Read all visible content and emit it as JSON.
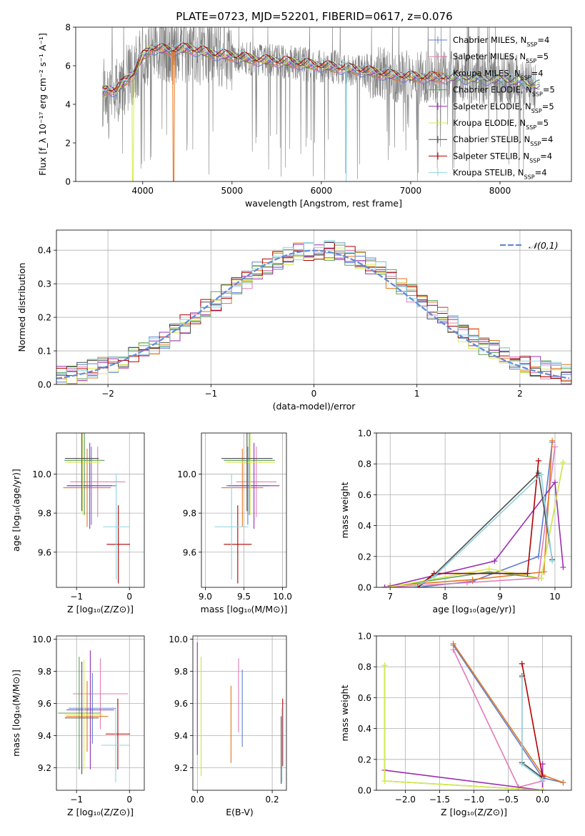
{
  "figure": {
    "title": "PLATE=0723, MJD=52201, FIBERID=0617, z=0.076"
  },
  "colors": {
    "Chabrier MILES": "#5e7fd1",
    "Salpeter MILES": "#e27bb5",
    "Kroupa MILES": "#e6761f",
    "Chabrier ELODIE": "#5f9f5a",
    "Salpeter ELODIE": "#9a2fb0",
    "Kroupa ELODIE": "#d8ec4e",
    "Chabrier STELIB": "#4f4f4f",
    "Salpeter STELIB": "#b00000",
    "Kroupa STELIB": "#8fd3e0",
    "data": "#808080",
    "normal": "#5f8ad8"
  },
  "chart_data": [
    {
      "id": "spectrum",
      "type": "line",
      "xlabel": "wavelength [Angstrom, rest frame]",
      "ylabel": "Flux [f_λ 10⁻¹⁷ erg cm⁻² s⁻¹ A⁻¹]",
      "xlim": [
        3250,
        8800
      ],
      "ylim": [
        0,
        8
      ],
      "xticks": [
        4000,
        5000,
        6000,
        7000,
        8000
      ],
      "yticks": [
        0,
        2,
        4,
        6,
        8
      ],
      "legend_position": "right",
      "legend": [
        "Chabrier MILES, N_SSP=4",
        "Salpeter MILES, N_SSP=5",
        "Kroupa MILES, N_SSP=4",
        "Chabrier ELODIE, N_SSP=5",
        "Salpeter ELODIE, N_SSP=5",
        "Kroupa ELODIE, N_SSP=5",
        "Chabrier STELIB, N_SSP=4",
        "Salpeter STELIB, N_SSP=4",
        "Kroupa STELIB, N_SSP=4"
      ],
      "data_range": [
        3550,
        8400
      ],
      "model_continuum": [
        [
          3550,
          4.6
        ],
        [
          3600,
          4.8
        ],
        [
          3700,
          4.7
        ],
        [
          3800,
          5.2
        ],
        [
          3900,
          5.6
        ],
        [
          4000,
          6.5
        ],
        [
          4100,
          6.9
        ],
        [
          4300,
          6.8
        ],
        [
          4500,
          6.9
        ],
        [
          4800,
          6.6
        ],
        [
          5000,
          6.5
        ],
        [
          5300,
          6.3
        ],
        [
          5600,
          6.2
        ],
        [
          6000,
          6.0
        ],
        [
          6400,
          5.8
        ],
        [
          6800,
          5.5
        ],
        [
          7100,
          5.4
        ],
        [
          7500,
          5.4
        ],
        [
          7900,
          5.3
        ],
        [
          8200,
          5.2
        ],
        [
          8400,
          5.0
        ]
      ]
    },
    {
      "id": "residual-hist",
      "type": "histogram",
      "xlabel": "(data-model)/error",
      "ylabel": "Normed distribution",
      "xlim": [
        -2.5,
        2.5
      ],
      "ylim": [
        0,
        0.46
      ],
      "xticks": [
        -2,
        -1,
        0,
        1,
        2
      ],
      "yticks": [
        0.0,
        0.1,
        0.2,
        0.3,
        0.4
      ],
      "legend": [
        "𝒩(0,1)"
      ],
      "legend_position": "top-right",
      "bin_width": 0.1
    },
    {
      "id": "age-vs-Z",
      "type": "errorbar",
      "xlabel": "Z [log₁₀(Z/Z⊙)]",
      "ylabel": "age  [log₁₀(age/yr)]",
      "xlim": [
        -1.38,
        0.28
      ],
      "ylim": [
        9.42,
        10.21
      ],
      "xticks": [
        -1,
        0
      ],
      "yticks": [
        9.6,
        9.8,
        10.0
      ],
      "points": [
        {
          "model": "Chabrier MILES",
          "x": -0.72,
          "xerr": 0.47,
          "y": 9.94,
          "yerr": 0.2
        },
        {
          "model": "Salpeter MILES",
          "x": -0.6,
          "xerr": 0.52,
          "y": 9.96,
          "yerr": 0.18
        },
        {
          "model": "Kroupa MILES",
          "x": -0.8,
          "xerr": 0.45,
          "y": 9.93,
          "yerr": 0.2
        },
        {
          "model": "Chabrier ELODIE",
          "x": -0.85,
          "xerr": 0.38,
          "y": 10.07,
          "yerr": 0.28
        },
        {
          "model": "Salpeter ELODIE",
          "x": -0.75,
          "xerr": 0.42,
          "y": 9.94,
          "yerr": 0.22
        },
        {
          "model": "Kroupa ELODIE",
          "x": -0.88,
          "xerr": 0.33,
          "y": 10.06,
          "yerr": 0.27
        },
        {
          "model": "Chabrier STELIB",
          "x": -0.9,
          "xerr": 0.32,
          "y": 10.08,
          "yerr": 0.27
        },
        {
          "model": "Salpeter STELIB",
          "x": -0.21,
          "xerr": 0.22,
          "y": 9.64,
          "yerr": 0.2
        },
        {
          "model": "Kroupa STELIB",
          "x": -0.25,
          "xerr": 0.25,
          "y": 9.73,
          "yerr": 0.27
        }
      ]
    },
    {
      "id": "age-vs-mass",
      "type": "errorbar",
      "xlabel": "mass [log₁₀(M/M⊙)]",
      "ylabel": "",
      "xlim": [
        8.95,
        10.05
      ],
      "ylim": [
        9.42,
        10.21
      ],
      "xticks": [
        9.0,
        9.5,
        10.0
      ],
      "yticks": [
        9.6,
        9.8,
        10.0
      ],
      "points": [
        {
          "model": "Chabrier MILES",
          "x": 9.55,
          "xerr": 0.28,
          "y": 9.94,
          "yerr": 0.2
        },
        {
          "model": "Salpeter MILES",
          "x": 9.66,
          "xerr": 0.26,
          "y": 9.96,
          "yerr": 0.18
        },
        {
          "model": "Kroupa MILES",
          "x": 9.48,
          "xerr": 0.27,
          "y": 9.93,
          "yerr": 0.2
        },
        {
          "model": "Chabrier ELODIE",
          "x": 9.57,
          "xerr": 0.33,
          "y": 10.07,
          "yerr": 0.28
        },
        {
          "model": "Salpeter ELODIE",
          "x": 9.63,
          "xerr": 0.33,
          "y": 9.94,
          "yerr": 0.22
        },
        {
          "model": "Kroupa ELODIE",
          "x": 9.58,
          "xerr": 0.32,
          "y": 10.06,
          "yerr": 0.27
        },
        {
          "model": "Chabrier STELIB",
          "x": 9.54,
          "xerr": 0.33,
          "y": 10.08,
          "yerr": 0.27
        },
        {
          "model": "Salpeter STELIB",
          "x": 9.42,
          "xerr": 0.18,
          "y": 9.64,
          "yerr": 0.2
        },
        {
          "model": "Kroupa STELIB",
          "x": 9.34,
          "xerr": 0.22,
          "y": 9.73,
          "yerr": 0.27
        }
      ]
    },
    {
      "id": "weight-vs-age",
      "type": "line",
      "xlabel": "age  [log₁₀(age/yr)]",
      "ylabel": "mass weight",
      "xlim": [
        6.75,
        10.3
      ],
      "ylim": [
        0,
        1
      ],
      "xticks": [
        7,
        8,
        9,
        10
      ],
      "yticks": [
        0.0,
        0.2,
        0.4,
        0.6,
        0.8,
        1.0
      ],
      "series": [
        {
          "model": "Chabrier MILES",
          "x": [
            7.5,
            8.5,
            9.7,
            9.95
          ],
          "y": [
            0.0,
            0.04,
            0.2,
            0.94
          ]
        },
        {
          "model": "Salpeter MILES",
          "x": [
            6.9,
            8.4,
            9.7,
            10.0
          ],
          "y": [
            0.0,
            0.03,
            0.06,
            0.91
          ]
        },
        {
          "model": "Kroupa MILES",
          "x": [
            7.0,
            8.5,
            9.8,
            9.95
          ],
          "y": [
            0.01,
            0.05,
            0.1,
            0.95
          ]
        },
        {
          "model": "Chabrier ELODIE",
          "x": [
            6.9,
            8.8,
            9.75,
            10.15
          ],
          "y": [
            0.0,
            0.1,
            0.06,
            0.81
          ]
        },
        {
          "model": "Salpeter ELODIE",
          "x": [
            6.9,
            8.9,
            10.0,
            10.15
          ],
          "y": [
            0.0,
            0.17,
            0.68,
            0.13
          ]
        },
        {
          "model": "Kroupa ELODIE",
          "x": [
            6.95,
            8.8,
            9.75,
            10.15
          ],
          "y": [
            0.0,
            0.12,
            0.06,
            0.81
          ]
        },
        {
          "model": "Chabrier STELIB",
          "x": [
            7.5,
            7.8,
            9.7,
            9.95
          ],
          "y": [
            0.0,
            0.08,
            0.74,
            0.18
          ]
        },
        {
          "model": "Salpeter STELIB",
          "x": [
            7.5,
            7.8,
            9.5,
            9.7
          ],
          "y": [
            0.0,
            0.09,
            0.09,
            0.82
          ]
        },
        {
          "model": "Kroupa STELIB",
          "x": [
            7.45,
            7.8,
            9.75,
            9.95
          ],
          "y": [
            0.0,
            0.07,
            0.73,
            0.17
          ]
        }
      ]
    },
    {
      "id": "mass-vs-Z",
      "type": "errorbar",
      "xlabel": "Z [log₁₀(Z/Z⊙)]",
      "ylabel": "mass [log₁₀(M/M⊙)]",
      "xlim": [
        -1.38,
        0.28
      ],
      "ylim": [
        9.06,
        10.02
      ],
      "xticks": [
        -1,
        0
      ],
      "yticks": [
        9.2,
        9.4,
        9.6,
        9.8,
        10.0
      ],
      "points": [
        {
          "model": "Chabrier MILES",
          "x": -0.7,
          "xerr": 0.45,
          "y": 9.57,
          "yerr": 0.22
        },
        {
          "model": "Salpeter MILES",
          "x": -0.55,
          "xerr": 0.52,
          "y": 9.66,
          "yerr": 0.22
        },
        {
          "model": "Kroupa MILES",
          "x": -0.8,
          "xerr": 0.4,
          "y": 9.52,
          "yerr": 0.22
        },
        {
          "model": "Chabrier ELODIE",
          "x": -0.95,
          "xerr": 0.4,
          "y": 9.54,
          "yerr": 0.35
        },
        {
          "model": "Salpeter ELODIE",
          "x": -0.74,
          "xerr": 0.45,
          "y": 9.56,
          "yerr": 0.37
        },
        {
          "model": "Kroupa ELODIE",
          "x": -0.86,
          "xerr": 0.36,
          "y": 9.53,
          "yerr": 0.34
        },
        {
          "model": "Chabrier STELIB",
          "x": -0.9,
          "xerr": 0.32,
          "y": 9.51,
          "yerr": 0.35
        },
        {
          "model": "Salpeter STELIB",
          "x": -0.22,
          "xerr": 0.23,
          "y": 9.41,
          "yerr": 0.22
        },
        {
          "model": "Kroupa STELIB",
          "x": -0.26,
          "xerr": 0.27,
          "y": 9.34,
          "yerr": 0.23
        }
      ]
    },
    {
      "id": "mass-vs-ebv",
      "type": "errorbar",
      "xlabel": "E(B-V)",
      "ylabel": "",
      "xlim": [
        -0.012,
        0.238
      ],
      "ylim": [
        9.06,
        10.02
      ],
      "xticks": [
        0.0,
        0.2
      ],
      "yticks": [
        9.2,
        9.4,
        9.6,
        9.8,
        10.0
      ],
      "points": [
        {
          "model": "Chabrier MILES",
          "x": 0.12,
          "y": 9.57,
          "yerr": 0.24
        },
        {
          "model": "Salpeter MILES",
          "x": 0.11,
          "y": 9.65,
          "yerr": 0.23
        },
        {
          "model": "Kroupa MILES",
          "x": 0.09,
          "y": 9.47,
          "yerr": 0.24
        },
        {
          "model": "Chabrier ELODIE",
          "x": 0.01,
          "y": 9.52,
          "yerr": 0.37
        },
        {
          "model": "Salpeter ELODIE",
          "x": 0.0,
          "y": 9.63,
          "yerr": 0.35
        },
        {
          "model": "Kroupa ELODIE",
          "x": 0.01,
          "y": 9.52,
          "yerr": 0.37
        },
        {
          "model": "Chabrier STELIB",
          "x": 0.224,
          "y": 9.31,
          "yerr": 0.21
        },
        {
          "model": "Salpeter STELIB",
          "x": 0.228,
          "y": 9.42,
          "yerr": 0.21
        },
        {
          "model": "Kroupa STELIB",
          "x": 0.226,
          "y": 9.34,
          "yerr": 0.23
        }
      ]
    },
    {
      "id": "weight-vs-Z",
      "type": "line",
      "xlabel": "Z [log₁₀(Z/Z⊙)]",
      "ylabel": "mass weight",
      "xlim": [
        -2.42,
        0.42
      ],
      "ylim": [
        0,
        1
      ],
      "xticks": [
        -2.0,
        -1.5,
        -1.0,
        -0.5,
        0.0
      ],
      "yticks": [
        0.0,
        0.2,
        0.4,
        0.6,
        0.8,
        1.0
      ],
      "series": [
        {
          "model": "Chabrier MILES",
          "x": [
            -1.3,
            0.0,
            0.3
          ],
          "y": [
            0.94,
            0.08,
            0.05
          ]
        },
        {
          "model": "Salpeter MILES",
          "x": [
            -1.3,
            -0.35,
            0.0
          ],
          "y": [
            0.91,
            0.02,
            0.06
          ]
        },
        {
          "model": "Kroupa MILES",
          "x": [
            -1.3,
            -0.0,
            0.3
          ],
          "y": [
            0.95,
            0.1,
            0.05
          ]
        },
        {
          "model": "Chabrier ELODIE",
          "x": [
            -2.3,
            -2.3,
            0.0
          ],
          "y": [
            0.81,
            0.06,
            0.0
          ]
        },
        {
          "model": "Salpeter ELODIE",
          "x": [
            -2.3,
            0.0,
            0.0
          ],
          "y": [
            0.13,
            0.0,
            0.17
          ]
        },
        {
          "model": "Kroupa ELODIE",
          "x": [
            -2.3,
            -2.3,
            0.0
          ],
          "y": [
            0.81,
            0.06,
            0.0
          ]
        },
        {
          "model": "Chabrier STELIB",
          "x": [
            -0.3,
            -0.3,
            0.0
          ],
          "y": [
            0.74,
            0.18,
            0.08
          ]
        },
        {
          "model": "Salpeter STELIB",
          "x": [
            -0.3,
            0.0,
            0.0
          ],
          "y": [
            0.82,
            0.09,
            0.09
          ]
        },
        {
          "model": "Kroupa STELIB",
          "x": [
            -0.3,
            -0.3,
            0.0
          ],
          "y": [
            0.73,
            0.17,
            0.07
          ]
        }
      ]
    }
  ]
}
